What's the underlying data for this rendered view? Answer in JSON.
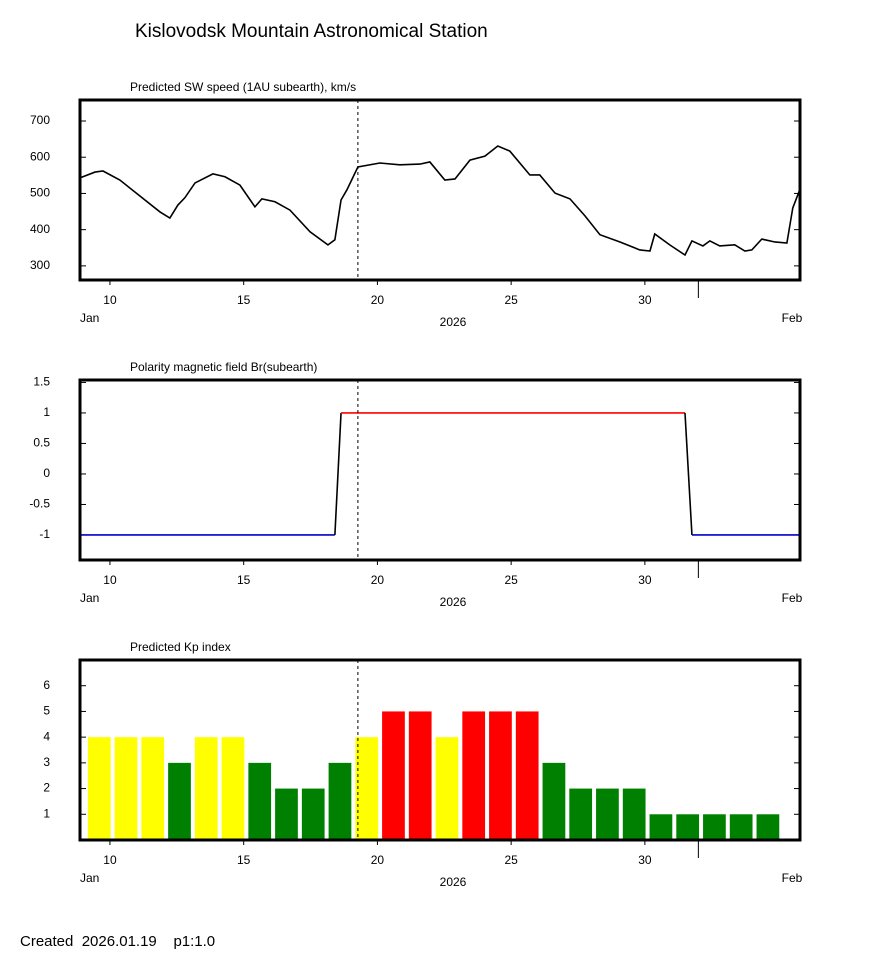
{
  "title": "Kislovodsk Mountain Astronomical Station",
  "footer": "Created  2026.01.19    p1:1.0",
  "chart_data": [
    {
      "type": "line",
      "title": "Predicted SW speed (1AU subearth), km/s",
      "color": "#000000",
      "x": [
        8.88,
        9.44,
        9.74,
        10.37,
        11.12,
        11.87,
        12.24,
        12.54,
        12.8,
        13.18,
        13.85,
        14.3,
        14.86,
        15.42,
        15.68,
        16.17,
        16.73,
        17.48,
        18.15,
        18.41,
        18.64,
        18.86,
        19.27,
        20.09,
        20.84,
        21.59,
        21.96,
        22.52,
        22.9,
        23.46,
        24.02,
        24.5,
        24.95,
        25.7,
        26.07,
        26.64,
        27.2,
        27.76,
        28.32,
        29.07,
        29.81,
        30.19,
        30.37,
        30.93,
        31.5,
        31.76,
        32.17,
        32.43,
        32.8,
        33.36,
        33.74,
        34.0,
        34.37,
        34.86,
        35.31,
        35.53,
        35.79
      ],
      "values": [
        543,
        559,
        562,
        537,
        493,
        449,
        432,
        468,
        488,
        529,
        554,
        546,
        523,
        463,
        485,
        477,
        454,
        394,
        358,
        372,
        482,
        510,
        573,
        584,
        579,
        581,
        587,
        537,
        540,
        592,
        603,
        631,
        617,
        551,
        551,
        501,
        485,
        438,
        386,
        366,
        344,
        341,
        388,
        358,
        330,
        369,
        355,
        369,
        355,
        358,
        341,
        344,
        374,
        366,
        363,
        460,
        510
      ],
      "xlim": [
        8.88,
        35.8
      ],
      "ylim": [
        261,
        758
      ],
      "yticks": [
        300,
        400,
        500,
        600,
        700
      ],
      "xticks": [
        10,
        15,
        20,
        25,
        30
      ],
      "month_tick": 32,
      "start_label": "Jan",
      "end_label": "Feb",
      "year_label": "2026",
      "marker_x": 19.27
    },
    {
      "type": "line",
      "title": "Polarity magnetic field  Br(subearth)",
      "color": "#000000",
      "positive_color": "#ff0000",
      "negative_color": "#0000cc",
      "x": [
        8.88,
        18.41,
        18.64,
        31.5,
        31.76,
        35.79
      ],
      "values": [
        -1,
        -1,
        1,
        1,
        -1,
        -1
      ],
      "xlim": [
        8.88,
        35.8
      ],
      "ylim": [
        -1.41,
        1.54
      ],
      "yticks": [
        1.5,
        1,
        0.5,
        0,
        -0.5,
        -1
      ],
      "xticks": [
        10,
        15,
        20,
        25,
        30
      ],
      "month_tick": 32,
      "start_label": "Jan",
      "end_label": "Feb",
      "year_label": "2026",
      "marker_x": 19.27
    },
    {
      "type": "bar",
      "title": "Predicted Kp index",
      "x": [
        9.6,
        10.6,
        11.6,
        12.6,
        13.6,
        14.6,
        15.6,
        16.6,
        17.6,
        18.6,
        19.6,
        20.6,
        21.6,
        22.6,
        23.6,
        24.6,
        25.6,
        26.6,
        27.6,
        28.6,
        29.6,
        30.6,
        31.6,
        32.6,
        33.6,
        34.6
      ],
      "values": [
        4,
        4,
        4,
        3,
        4,
        4,
        3,
        2,
        2,
        3,
        4,
        5,
        5,
        4,
        5,
        5,
        5,
        3,
        2,
        2,
        2,
        1,
        1,
        1,
        1,
        1
      ],
      "colors": [
        "#ffff00",
        "#ffff00",
        "#ffff00",
        "#008000",
        "#ffff00",
        "#ffff00",
        "#008000",
        "#008000",
        "#008000",
        "#008000",
        "#ffff00",
        "#ff0000",
        "#ff0000",
        "#ffff00",
        "#ff0000",
        "#ff0000",
        "#ff0000",
        "#008000",
        "#008000",
        "#008000",
        "#008000",
        "#008000",
        "#008000",
        "#008000",
        "#008000",
        "#008000"
      ],
      "xlim": [
        8.88,
        35.8
      ],
      "ylim": [
        0,
        7
      ],
      "yticks": [
        1,
        2,
        3,
        4,
        5,
        6
      ],
      "xticks": [
        10,
        15,
        20,
        25,
        30
      ],
      "month_tick": 32,
      "start_label": "Jan",
      "end_label": "Feb",
      "year_label": "2026",
      "marker_x": 19.27
    }
  ]
}
